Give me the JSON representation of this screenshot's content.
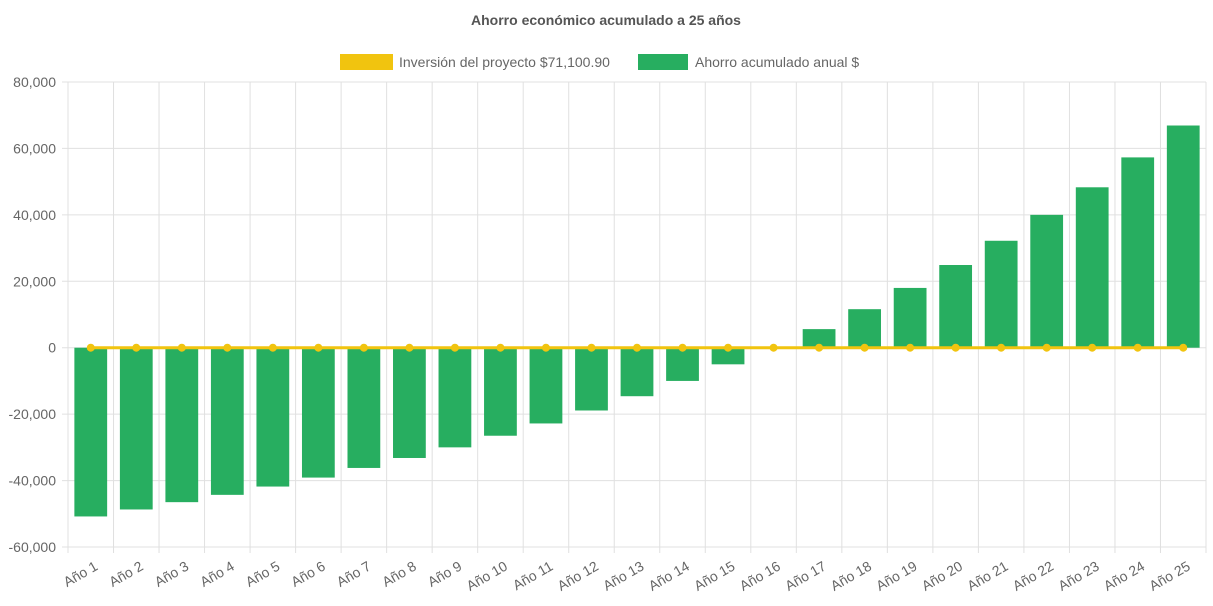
{
  "chart_data": {
    "type": "bar",
    "title": "Ahorro económico acumulado a 25 años",
    "xlabel": "",
    "ylabel": "",
    "ylim": [
      -60000,
      80000
    ],
    "y_ticks": [
      80000,
      60000,
      40000,
      20000,
      0,
      -20000,
      -40000,
      -60000
    ],
    "y_tick_labels": [
      "80,000",
      "60,000",
      "40,000",
      "20,000",
      "0",
      "-20,000",
      "-40,000",
      "-60,000"
    ],
    "grid": true,
    "legend_position": "top-center",
    "categories": [
      "Año 1",
      "Año 2",
      "Año 3",
      "Año 4",
      "Año 5",
      "Año 6",
      "Año 7",
      "Año 8",
      "Año 9",
      "Año 10",
      "Año 11",
      "Año 12",
      "Año 13",
      "Año 14",
      "Año 15",
      "Año 16",
      "Año 17",
      "Año 18",
      "Año 19",
      "Año 20",
      "Año 21",
      "Año 22",
      "Año 23",
      "Año 24",
      "Año 25"
    ],
    "series": [
      {
        "name": "Inversión del proyecto $71,100.90",
        "type": "line",
        "color": "#f1c40f",
        "values": [
          0,
          0,
          0,
          0,
          0,
          0,
          0,
          0,
          0,
          0,
          0,
          0,
          0,
          0,
          0,
          0,
          0,
          0,
          0,
          0,
          0,
          0,
          0,
          0,
          0
        ]
      },
      {
        "name": "Ahorro acumulado anual $",
        "type": "bar",
        "color": "#27ae60",
        "values": [
          -50800,
          -48700,
          -46500,
          -44300,
          -41800,
          -39100,
          -36200,
          -33200,
          -30000,
          -26500,
          -22800,
          -18900,
          -14600,
          -10000,
          -5000,
          0,
          5600,
          11600,
          18000,
          24900,
          32200,
          40000,
          48300,
          57300,
          66900
        ]
      }
    ]
  }
}
